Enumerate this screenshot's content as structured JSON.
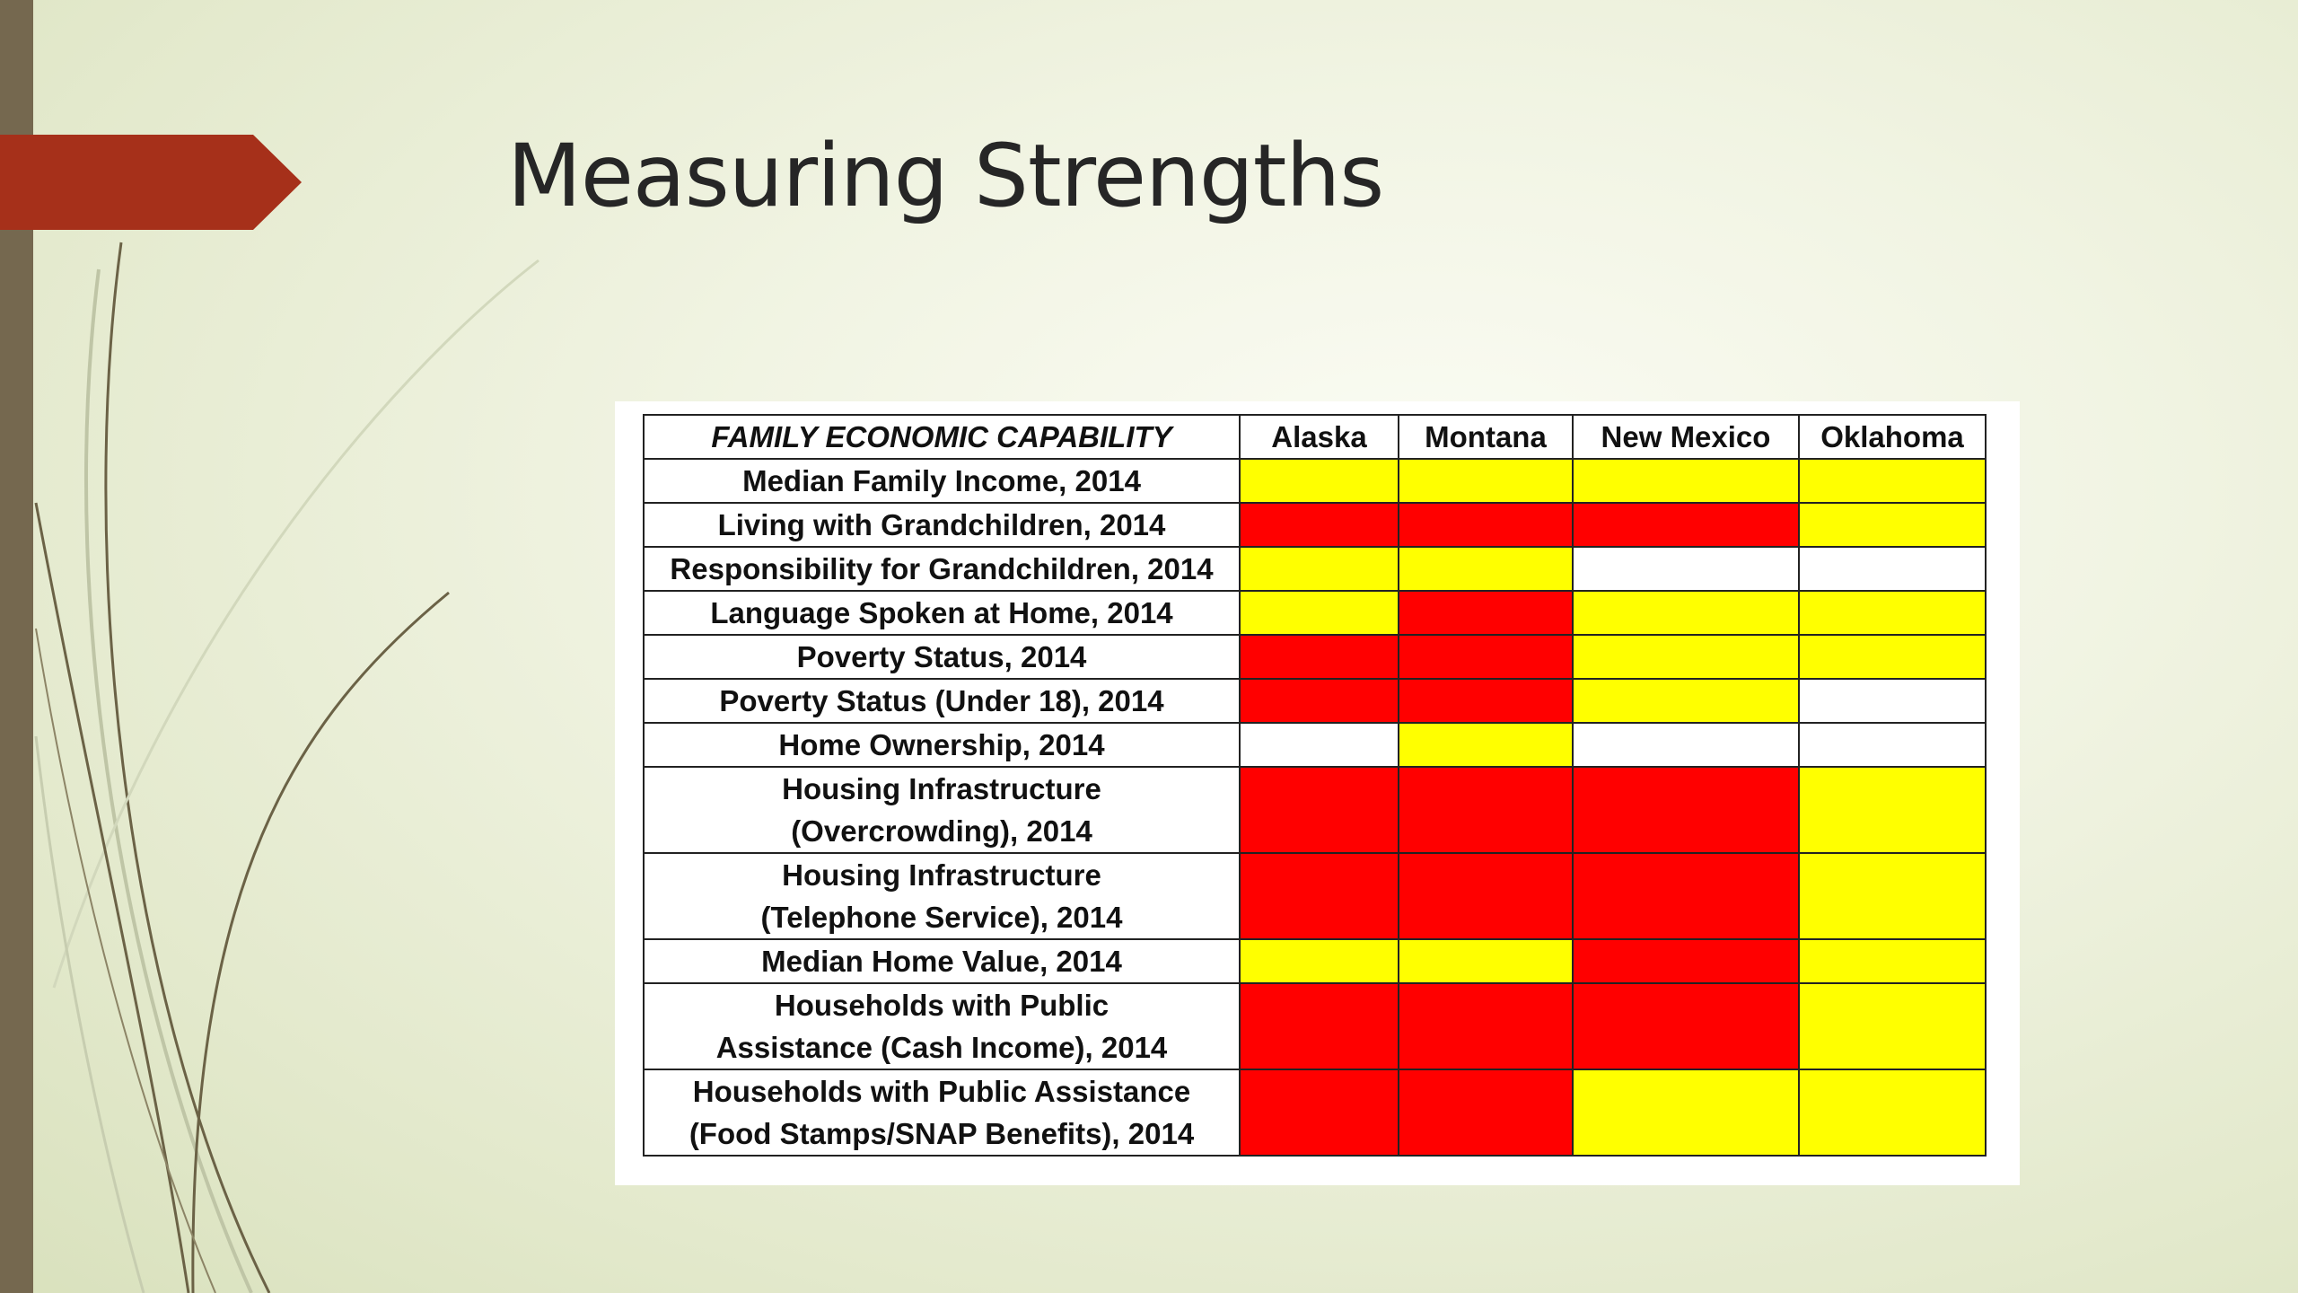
{
  "slide": {
    "title": "Measuring Strengths"
  },
  "colors": {
    "red": "#ff0000",
    "yellow": "#ffff00",
    "white": "#ffffff",
    "accent_tab": "#a6301a",
    "side_bar": "#75684f"
  },
  "table": {
    "header": {
      "indicator": "FAMILY ECONOMIC CAPABILITY",
      "states": [
        "Alaska",
        "Montana",
        "New Mexico",
        "Oklahoma"
      ]
    },
    "rows": [
      {
        "label_lines": [
          "Median Family Income, 2014"
        ],
        "cells": [
          "yellow",
          "yellow",
          "yellow",
          "yellow"
        ]
      },
      {
        "label_lines": [
          "Living with Grandchildren, 2014"
        ],
        "cells": [
          "red",
          "red",
          "red",
          "yellow"
        ]
      },
      {
        "label_lines": [
          "Responsibility for Grandchildren, 2014"
        ],
        "cells": [
          "yellow",
          "yellow",
          "white",
          "white"
        ]
      },
      {
        "label_lines": [
          "Language Spoken at Home, 2014"
        ],
        "cells": [
          "yellow",
          "red",
          "yellow",
          "yellow"
        ]
      },
      {
        "label_lines": [
          "Poverty Status, 2014"
        ],
        "cells": [
          "red",
          "red",
          "yellow",
          "yellow"
        ]
      },
      {
        "label_lines": [
          "Poverty Status (Under 18), 2014"
        ],
        "cells": [
          "red",
          "red",
          "yellow",
          "white"
        ]
      },
      {
        "label_lines": [
          "Home Ownership, 2014"
        ],
        "cells": [
          "white",
          "yellow",
          "white",
          "white"
        ]
      },
      {
        "label_lines": [
          "Housing Infrastructure",
          "(Overcrowding), 2014"
        ],
        "cells": [
          "red",
          "red",
          "red",
          "yellow"
        ]
      },
      {
        "label_lines": [
          "Housing Infrastructure",
          "(Telephone Service), 2014"
        ],
        "cells": [
          "red",
          "red",
          "red",
          "yellow"
        ]
      },
      {
        "label_lines": [
          "Median Home Value, 2014"
        ],
        "cells": [
          "yellow",
          "yellow",
          "red",
          "yellow"
        ]
      },
      {
        "label_lines": [
          "Households with Public",
          "Assistance (Cash Income), 2014"
        ],
        "cells": [
          "red",
          "red",
          "red",
          "yellow"
        ]
      },
      {
        "label_lines": [
          "Households with Public Assistance",
          "(Food Stamps/SNAP Benefits), 2014"
        ],
        "cells": [
          "red",
          "red",
          "yellow",
          "yellow"
        ]
      }
    ]
  }
}
